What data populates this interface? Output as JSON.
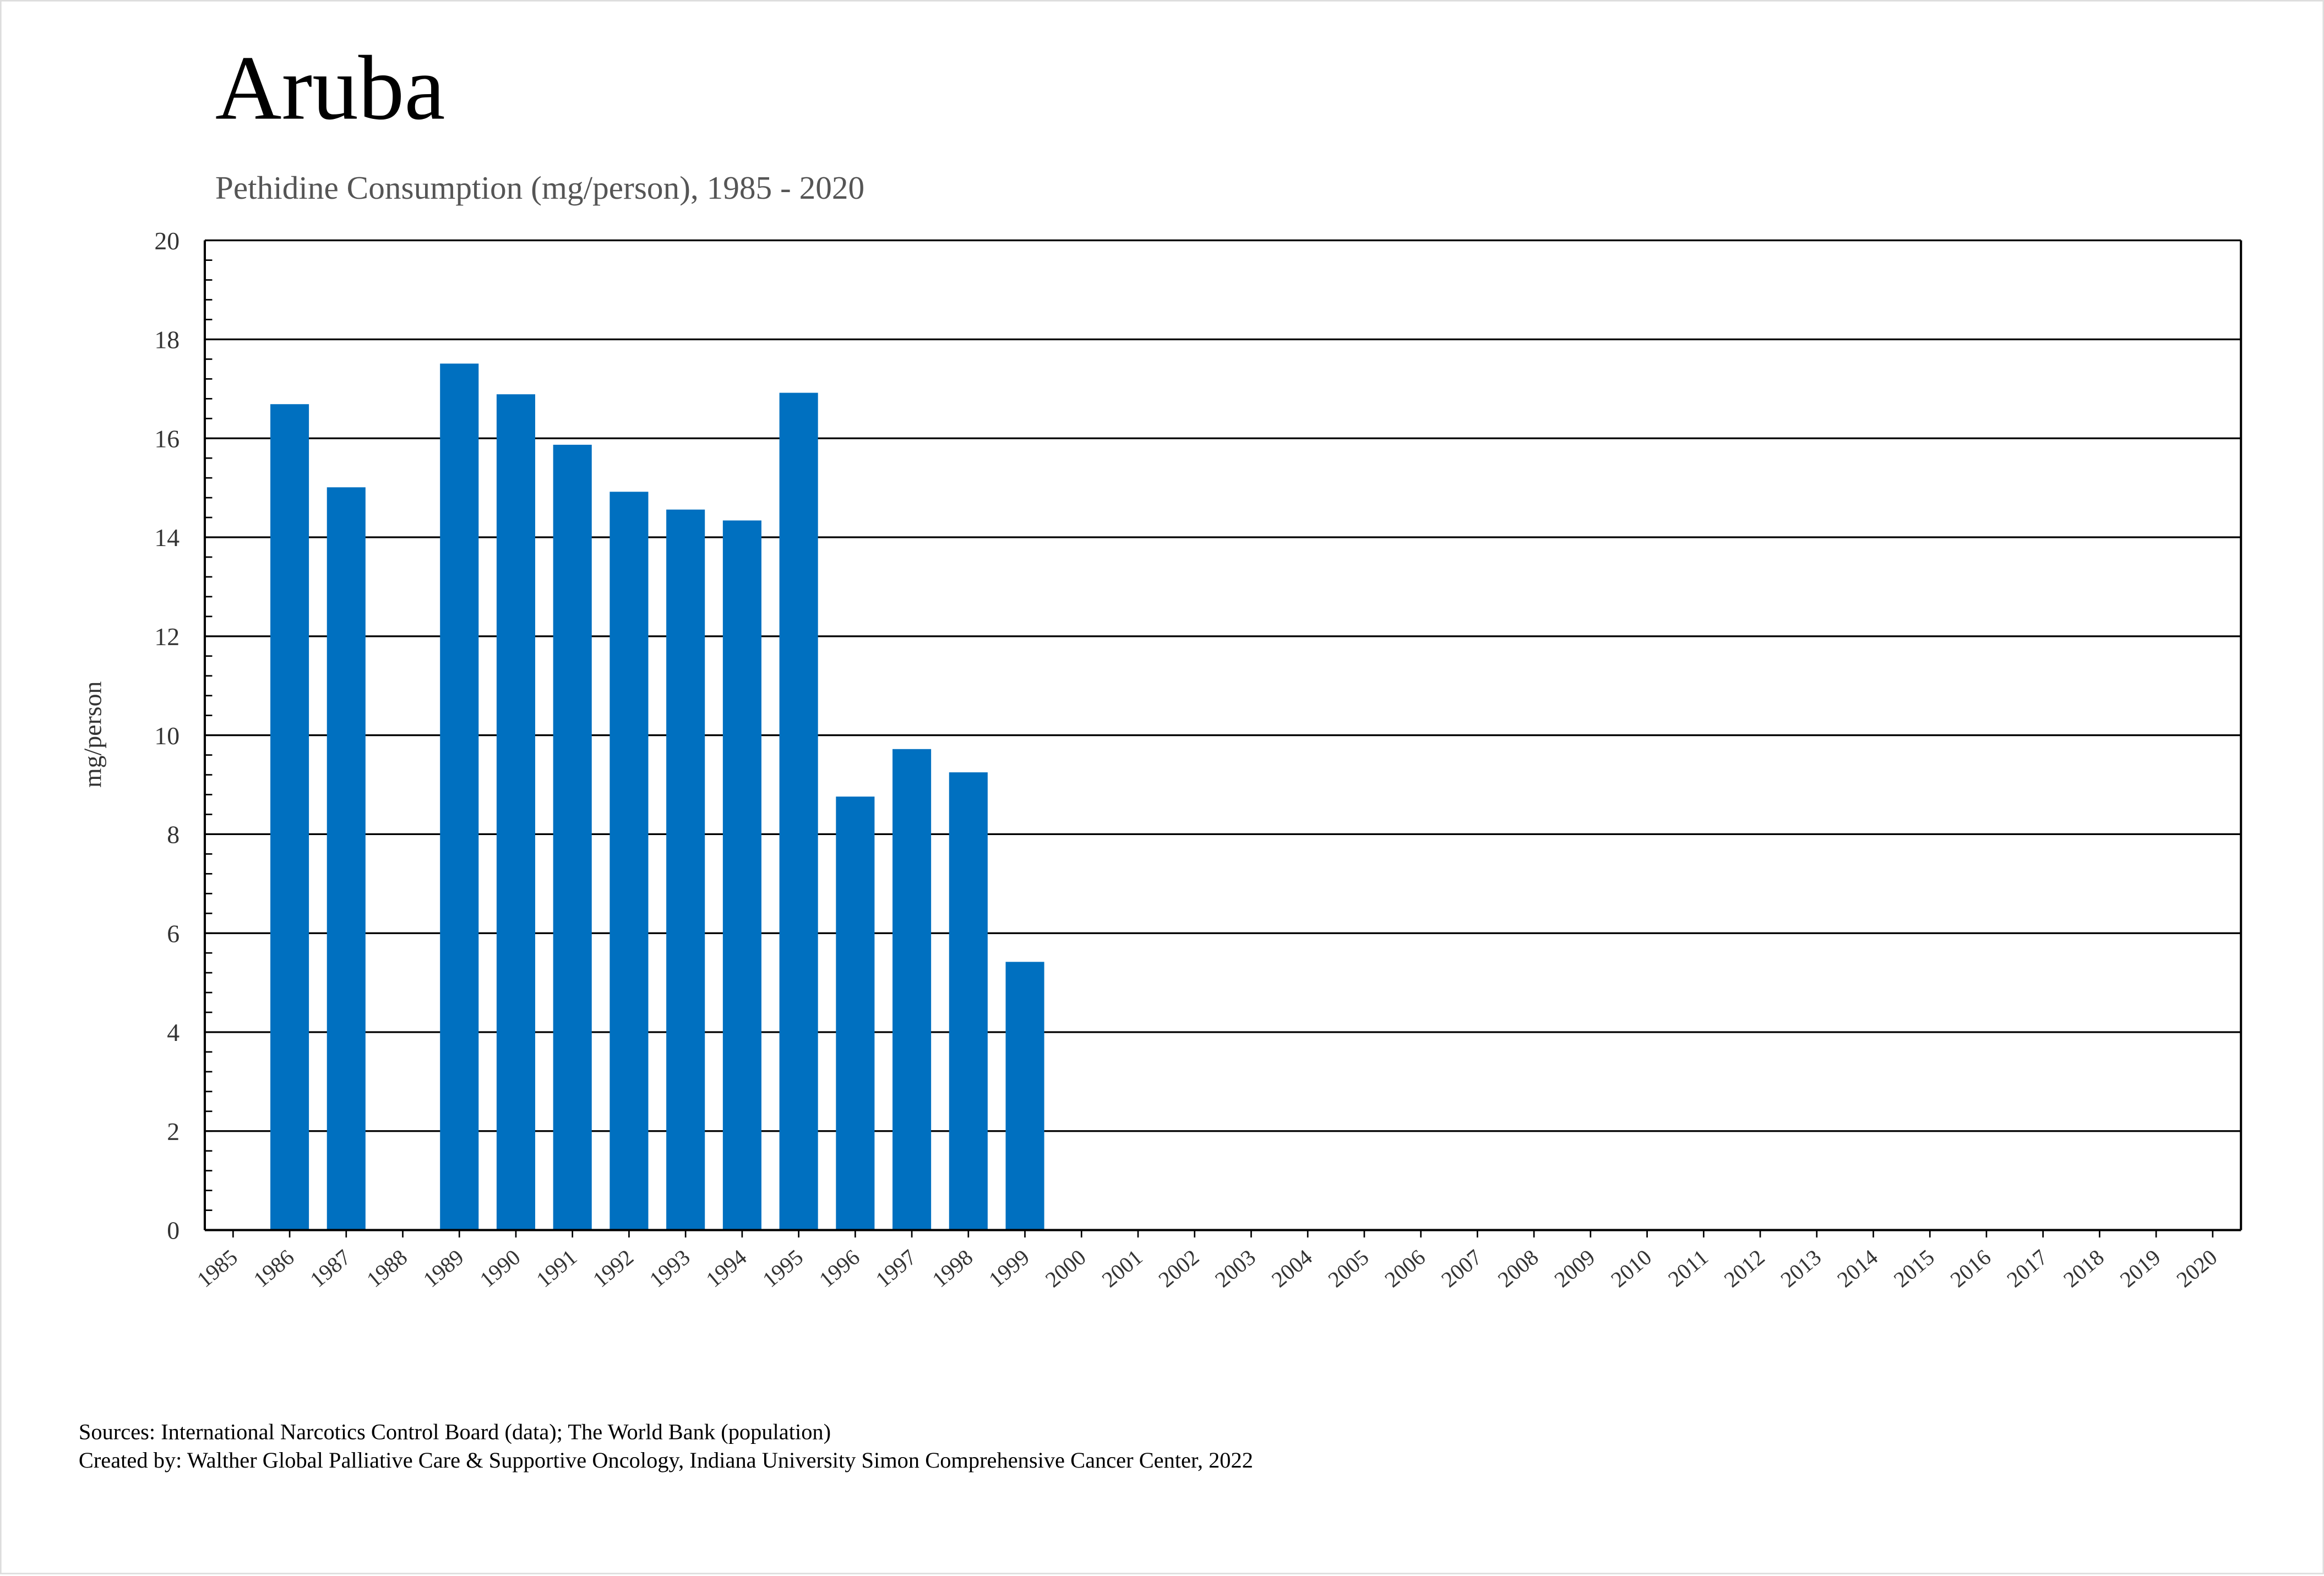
{
  "chart_data": {
    "type": "bar",
    "title": "Aruba",
    "subtitle": "Pethidine Consumption (mg/person), 1985 - 2020",
    "xlabel": "",
    "ylabel": "mg/person",
    "ylim": [
      0,
      20
    ],
    "yticks": [
      0,
      2,
      4,
      6,
      8,
      10,
      12,
      14,
      16,
      18,
      20
    ],
    "grid": true,
    "bar_color": "#0070C0",
    "categories": [
      "1985",
      "1986",
      "1987",
      "1988",
      "1989",
      "1990",
      "1991",
      "1992",
      "1993",
      "1994",
      "1995",
      "1996",
      "1997",
      "1998",
      "1999",
      "2000",
      "2001",
      "2002",
      "2003",
      "2004",
      "2005",
      "2006",
      "2007",
      "2008",
      "2009",
      "2010",
      "2011",
      "2012",
      "2013",
      "2014",
      "2015",
      "2016",
      "2017",
      "2018",
      "2019",
      "2020"
    ],
    "values": [
      null,
      16.69,
      15.01,
      null,
      17.51,
      16.89,
      15.87,
      14.92,
      14.56,
      14.34,
      16.92,
      8.76,
      9.72,
      9.25,
      5.42,
      null,
      null,
      null,
      null,
      null,
      null,
      null,
      null,
      null,
      null,
      null,
      null,
      null,
      null,
      null,
      null,
      null,
      null,
      null,
      null,
      null
    ]
  },
  "footer": {
    "sources": "Sources: International Narcotics Control Board (data); The World Bank (population)",
    "created_by": "Created by: Walther Global Palliative Care & Supportive Oncology, Indiana University Simon Comprehensive Cancer Center, 2022"
  }
}
